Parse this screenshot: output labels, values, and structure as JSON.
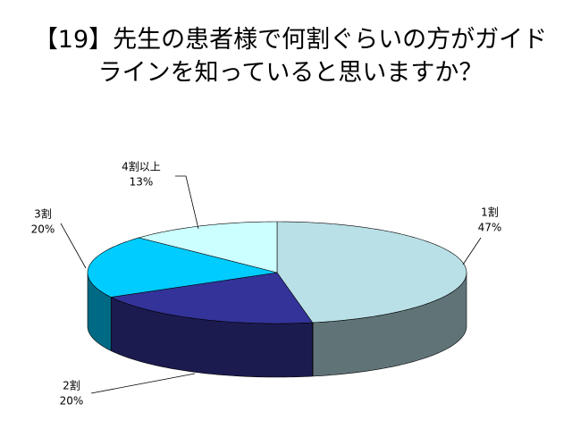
{
  "chart_data": {
    "type": "pie",
    "title": "【19】先生の患者様で何割ぐらいの方がガイドラインを知っていると思いますか？",
    "categories": [
      "1割",
      "2割",
      "3割",
      "4割以上"
    ],
    "values": [
      47,
      20,
      20,
      13
    ],
    "value_labels": [
      "47%",
      "20%",
      "20%",
      "13%"
    ],
    "colors": [
      "#b9e0e6",
      "#333399",
      "#00ccff",
      "#ccffff"
    ]
  }
}
